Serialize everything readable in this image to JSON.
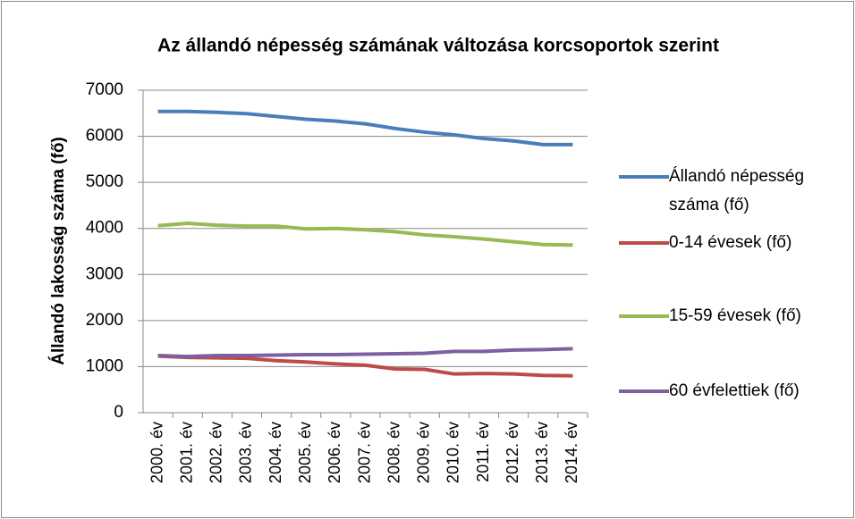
{
  "chart_data": {
    "type": "line",
    "title": "Az állandó népesség számának változása korcsoportok szerint",
    "y_label": "Állandó lakosság száma (fő)",
    "categories": [
      "2000. év",
      "2001. év",
      "2002. év",
      "2003. év",
      "2004. év",
      "2005. év",
      "2006. év",
      "2007. év",
      "2008. év",
      "2009. év",
      "2010. év",
      "2011. év",
      "2012. év",
      "2013. év",
      "2014. év"
    ],
    "series": [
      {
        "name": "Állandó népesség száma (fő)",
        "color": "#4a7ebb",
        "values": [
          6540,
          6540,
          6520,
          6490,
          6430,
          6370,
          6330,
          6270,
          6170,
          6090,
          6030,
          5950,
          5900,
          5820,
          5820
        ]
      },
      {
        "name": "0-14 évesek (fő)",
        "color": "#be4b48",
        "values": [
          1230,
          1200,
          1190,
          1180,
          1130,
          1100,
          1060,
          1030,
          950,
          940,
          840,
          850,
          840,
          810,
          800
        ]
      },
      {
        "name": "15-59 évesek (fő)",
        "color": "#98b954",
        "values": [
          4060,
          4110,
          4070,
          4050,
          4050,
          3990,
          4000,
          3970,
          3930,
          3860,
          3820,
          3770,
          3710,
          3650,
          3640
        ]
      },
      {
        "name": "60 évfelettiek (fő)",
        "color": "#7d60a0",
        "values": [
          1240,
          1220,
          1240,
          1240,
          1250,
          1260,
          1260,
          1270,
          1280,
          1290,
          1330,
          1330,
          1360,
          1370,
          1390
        ]
      }
    ],
    "ylim": [
      0,
      7000
    ],
    "yticks": [
      0,
      1000,
      2000,
      3000,
      4000,
      5000,
      6000,
      7000
    ],
    "grid": true,
    "legend": "right"
  }
}
